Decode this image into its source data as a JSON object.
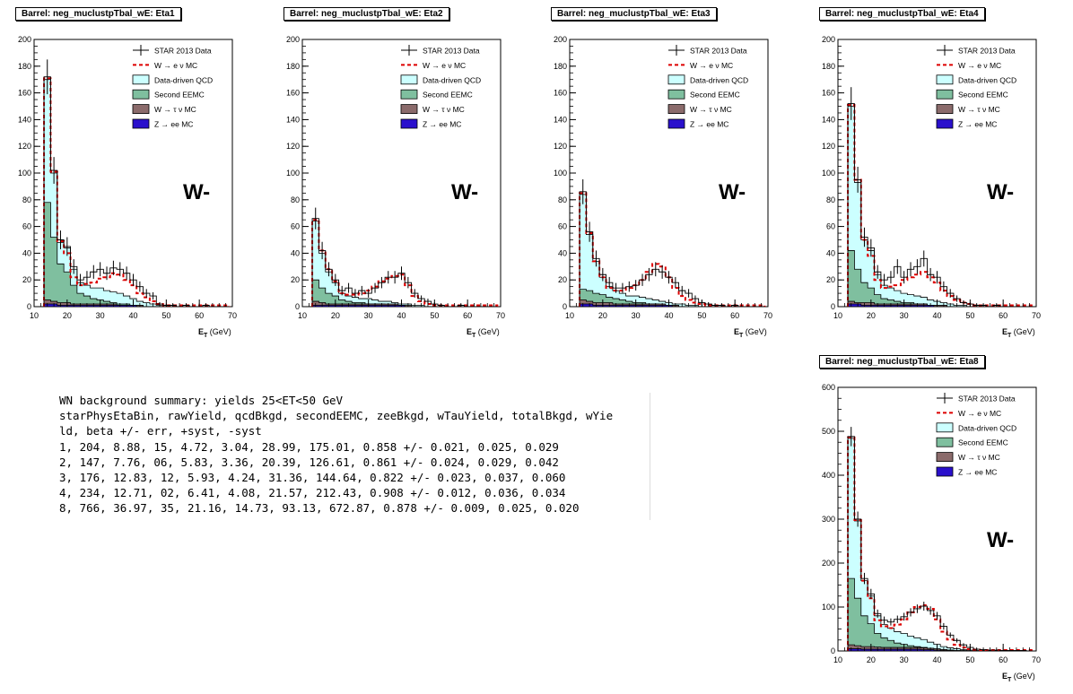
{
  "summary": {
    "lines": [
      "WN background summary: yields 25<ET<50 GeV",
      "starPhysEtaBin, rawYield, qcdBkgd, secondEEMC, zeeBkgd, wTauYield, totalBkgd, wYie",
      "ld, beta +/- err, +syst, -syst",
      "1, 204, 8.88, 15, 4.72, 3.04, 28.99, 175.01, 0.858 +/- 0.021, 0.025, 0.029",
      "2, 147, 7.76, 06, 5.83, 3.36, 20.39, 126.61, 0.861 +/- 0.024, 0.029, 0.042",
      "3, 176, 12.83, 12, 5.93, 4.24, 31.36, 144.64, 0.822 +/- 0.023, 0.037, 0.060",
      "4, 234, 12.71, 02, 6.41, 4.08, 21.57, 212.43, 0.908 +/- 0.012, 0.036, 0.034",
      "8, 766, 36.97, 35, 21.16, 14.73, 93.13, 672.87, 0.878 +/- 0.009, 0.025, 0.020"
    ]
  },
  "legend": [
    {
      "label": "STAR 2013 Data",
      "kind": "data",
      "color": "#000000"
    },
    {
      "label": "W  → e  ν MC",
      "kind": "dash",
      "color": "#dd0000"
    },
    {
      "label": "Data-driven QCD",
      "kind": "box",
      "color": "#ccffff"
    },
    {
      "label": "Second EEMC",
      "kind": "box",
      "color": "#7fbf9f"
    },
    {
      "label": "W  → τ  ν MC",
      "kind": "box",
      "color": "#8b6b6b"
    },
    {
      "label": "Z  → ee MC",
      "kind": "box",
      "color": "#2a10cc"
    }
  ],
  "chart_data": [
    {
      "type": "bar",
      "title": "Barrel: neg_muclustpTbal_wE: Eta1",
      "label": "W-",
      "xlabel": "E",
      "xlabel_sub": "T",
      "xlabel_unit": " (GeV)",
      "xlim": [
        10,
        70
      ],
      "ylim": [
        0,
        200
      ],
      "xticks": [
        10,
        20,
        30,
        40,
        50,
        60,
        70
      ],
      "yticks": [
        0,
        20,
        40,
        60,
        80,
        100,
        120,
        140,
        160,
        180,
        200
      ],
      "bin_width": 2,
      "x": [
        14,
        16,
        18,
        20,
        22,
        24,
        26,
        28,
        30,
        32,
        34,
        36,
        38,
        40,
        42,
        44,
        46,
        48,
        50,
        52,
        54,
        56,
        58,
        60,
        62,
        64,
        66,
        68
      ],
      "data": [
        172,
        102,
        50,
        45,
        30,
        20,
        22,
        26,
        28,
        25,
        29,
        28,
        25,
        20,
        15,
        10,
        8,
        2,
        1,
        1,
        0,
        1,
        0,
        0,
        1,
        0,
        0,
        0
      ],
      "data_err": [
        13,
        10,
        7,
        7,
        5.5,
        4.5,
        4.7,
        5.1,
        5.3,
        5,
        5.4,
        5.3,
        5,
        4.5,
        3.9,
        3.2,
        2.8,
        1.4,
        1,
        1,
        0,
        1,
        0,
        0,
        1,
        0,
        0,
        0
      ],
      "w_mc": [
        171,
        101,
        49,
        40,
        22,
        16,
        17,
        18,
        21,
        22,
        25,
        24,
        20,
        16,
        10,
        7,
        4,
        2,
        1,
        1,
        1,
        1,
        1,
        1,
        1,
        1,
        1,
        1
      ],
      "qcd": [
        170,
        100,
        48,
        44,
        28,
        18,
        16,
        14,
        14,
        12,
        11,
        10,
        8,
        6,
        4,
        3,
        2,
        1,
        1,
        0,
        0,
        0,
        0,
        0,
        0,
        0,
        0,
        0
      ],
      "eemc": [
        78,
        52,
        32,
        26,
        16,
        10,
        8,
        6,
        5,
        4,
        3,
        2,
        2,
        1,
        1,
        0,
        0,
        0,
        0,
        0,
        0,
        0,
        0,
        0,
        0,
        0,
        0,
        0
      ],
      "wtau": [
        5,
        4,
        3,
        3,
        2,
        2,
        2,
        2,
        2,
        2,
        2,
        1,
        1,
        1,
        1,
        0,
        0,
        0,
        0,
        0,
        0,
        0,
        0,
        0,
        0,
        0,
        0,
        0
      ],
      "zee": [
        2,
        2,
        1,
        1,
        1,
        1,
        1,
        1,
        1,
        1,
        1,
        1,
        1,
        1,
        0,
        0,
        0,
        0,
        0,
        0,
        0,
        0,
        0,
        0,
        0,
        0,
        0,
        0
      ]
    },
    {
      "type": "bar",
      "title": "Barrel: neg_muclustpTbal_wE: Eta2",
      "label": "W-",
      "xlabel": "E",
      "xlabel_sub": "T",
      "xlabel_unit": " (GeV)",
      "xlim": [
        10,
        70
      ],
      "ylim": [
        0,
        200
      ],
      "xticks": [
        10,
        20,
        30,
        40,
        50,
        60,
        70
      ],
      "yticks": [
        0,
        20,
        40,
        60,
        80,
        100,
        120,
        140,
        160,
        180,
        200
      ],
      "bin_width": 2,
      "x": [
        14,
        16,
        18,
        20,
        22,
        24,
        26,
        28,
        30,
        32,
        34,
        36,
        38,
        40,
        42,
        44,
        46,
        48,
        50,
        52,
        54,
        56,
        58,
        60,
        62,
        64,
        66,
        68
      ],
      "data": [
        66,
        42,
        28,
        20,
        12,
        14,
        10,
        12,
        10,
        14,
        18,
        22,
        22,
        25,
        18,
        10,
        6,
        4,
        2,
        1,
        0,
        0,
        1,
        0,
        0,
        0,
        0,
        0
      ],
      "data_err": [
        8.1,
        6.5,
        5.3,
        4.5,
        3.5,
        3.7,
        3.2,
        3.5,
        3.2,
        3.7,
        4.2,
        4.7,
        4.7,
        5,
        4.2,
        3.2,
        2.4,
        2,
        1.4,
        1,
        0,
        0,
        1,
        0,
        0,
        0,
        0,
        0
      ],
      "w_mc": [
        65,
        42,
        28,
        19,
        10,
        9,
        9,
        10,
        12,
        15,
        19,
        21,
        23,
        24,
        16,
        8,
        4,
        2,
        1,
        1,
        1,
        1,
        1,
        1,
        1,
        1,
        1,
        1
      ],
      "qcd": [
        64,
        40,
        26,
        18,
        10,
        8,
        7,
        6,
        6,
        5,
        4,
        4,
        3,
        2,
        2,
        1,
        1,
        0,
        0,
        0,
        0,
        0,
        0,
        0,
        0,
        0,
        0,
        0
      ],
      "eemc": [
        20,
        14,
        10,
        8,
        5,
        4,
        3,
        3,
        2,
        2,
        2,
        1,
        1,
        1,
        0,
        0,
        0,
        0,
        0,
        0,
        0,
        0,
        0,
        0,
        0,
        0,
        0,
        0
      ],
      "wtau": [
        4,
        3,
        2,
        2,
        2,
        2,
        2,
        2,
        2,
        2,
        2,
        2,
        2,
        1,
        1,
        0,
        0,
        0,
        0,
        0,
        0,
        0,
        0,
        0,
        0,
        0,
        0,
        0
      ],
      "zee": [
        1,
        1,
        1,
        1,
        1,
        1,
        1,
        1,
        1,
        1,
        1,
        1,
        1,
        1,
        0,
        0,
        0,
        0,
        0,
        0,
        0,
        0,
        0,
        0,
        0,
        0,
        0,
        0
      ]
    },
    {
      "type": "bar",
      "title": "Barrel: neg_muclustpTbal_wE: Eta3",
      "label": "W-",
      "xlabel": "E",
      "xlabel_sub": "T",
      "xlabel_unit": " (GeV)",
      "xlim": [
        10,
        70
      ],
      "ylim": [
        0,
        200
      ],
      "xticks": [
        10,
        20,
        30,
        40,
        50,
        60,
        70
      ],
      "yticks": [
        0,
        20,
        40,
        60,
        80,
        100,
        120,
        140,
        160,
        180,
        200
      ],
      "bin_width": 2,
      "x": [
        14,
        16,
        18,
        20,
        22,
        24,
        26,
        28,
        30,
        32,
        34,
        36,
        38,
        40,
        42,
        44,
        46,
        48,
        50,
        52,
        54,
        56,
        58,
        60,
        62,
        64,
        66,
        68
      ],
      "data": [
        86,
        56,
        36,
        24,
        18,
        14,
        14,
        15,
        16,
        20,
        24,
        28,
        26,
        22,
        18,
        12,
        10,
        6,
        3,
        2,
        1,
        1,
        0,
        1,
        0,
        0,
        0,
        0
      ],
      "data_err": [
        9.3,
        7.5,
        6,
        4.9,
        4.2,
        3.7,
        3.7,
        3.9,
        4,
        4.5,
        4.9,
        5.3,
        5.1,
        4.7,
        4.2,
        3.5,
        3.2,
        2.4,
        1.7,
        1.4,
        1,
        1,
        0,
        1,
        0,
        0,
        0,
        0
      ],
      "w_mc": [
        85,
        55,
        34,
        22,
        14,
        12,
        12,
        14,
        16,
        20,
        26,
        32,
        30,
        22,
        14,
        8,
        5,
        3,
        2,
        1,
        1,
        1,
        1,
        1,
        1,
        1,
        1,
        1
      ],
      "qcd": [
        84,
        54,
        34,
        22,
        15,
        12,
        10,
        8,
        8,
        7,
        6,
        5,
        4,
        3,
        2,
        2,
        1,
        1,
        0,
        0,
        0,
        0,
        0,
        0,
        0,
        0,
        0,
        0
      ],
      "eemc": [
        13,
        12,
        10,
        9,
        7,
        6,
        5,
        4,
        3,
        3,
        2,
        2,
        1,
        1,
        1,
        0,
        0,
        0,
        0,
        0,
        0,
        0,
        0,
        0,
        0,
        0,
        0,
        0
      ],
      "wtau": [
        5,
        4,
        3,
        3,
        3,
        2,
        2,
        2,
        2,
        2,
        2,
        2,
        2,
        1,
        1,
        0,
        0,
        0,
        0,
        0,
        0,
        0,
        0,
        0,
        0,
        0,
        0,
        0
      ],
      "zee": [
        2,
        2,
        1,
        1,
        1,
        1,
        1,
        1,
        1,
        1,
        1,
        1,
        1,
        1,
        0,
        0,
        0,
        0,
        0,
        0,
        0,
        0,
        0,
        0,
        0,
        0,
        0,
        0
      ]
    },
    {
      "type": "bar",
      "title": "Barrel: neg_muclustpTbal_wE: Eta4",
      "label": "W-",
      "xlabel": "E",
      "xlabel_sub": "T",
      "xlabel_unit": " (GeV)",
      "xlim": [
        10,
        70
      ],
      "ylim": [
        0,
        200
      ],
      "xticks": [
        10,
        20,
        30,
        40,
        50,
        60,
        70
      ],
      "yticks": [
        0,
        20,
        40,
        60,
        80,
        100,
        120,
        140,
        160,
        180,
        200
      ],
      "bin_width": 2,
      "x": [
        14,
        16,
        18,
        20,
        22,
        24,
        26,
        28,
        30,
        32,
        34,
        36,
        38,
        40,
        42,
        44,
        46,
        48,
        50,
        52,
        54,
        56,
        58,
        60,
        62,
        64,
        66,
        68
      ],
      "data": [
        152,
        95,
        52,
        44,
        26,
        20,
        22,
        30,
        22,
        28,
        30,
        36,
        24,
        22,
        15,
        10,
        6,
        3,
        2,
        1,
        1,
        0,
        1,
        0,
        0,
        0,
        0,
        0
      ],
      "data_err": [
        12.3,
        9.7,
        7.2,
        6.6,
        5.1,
        4.5,
        4.7,
        5.5,
        4.7,
        5.3,
        5.5,
        6,
        4.9,
        4.7,
        3.9,
        3.2,
        2.4,
        1.7,
        1.4,
        1,
        1,
        0,
        1,
        0,
        0,
        0,
        0,
        0
      ],
      "w_mc": [
        151,
        95,
        50,
        38,
        20,
        14,
        15,
        16,
        20,
        22,
        24,
        26,
        22,
        18,
        12,
        8,
        5,
        3,
        2,
        1,
        1,
        1,
        1,
        1,
        1,
        1,
        1,
        1
      ],
      "qcd": [
        150,
        93,
        50,
        42,
        24,
        16,
        14,
        12,
        10,
        9,
        8,
        7,
        5,
        4,
        3,
        2,
        1,
        1,
        0,
        0,
        0,
        0,
        0,
        0,
        0,
        0,
        0,
        0
      ],
      "eemc": [
        42,
        28,
        18,
        14,
        9,
        6,
        5,
        4,
        3,
        3,
        2,
        2,
        1,
        1,
        1,
        0,
        0,
        0,
        0,
        0,
        0,
        0,
        0,
        0,
        0,
        0,
        0,
        0
      ],
      "wtau": [
        4,
        3,
        3,
        3,
        2,
        2,
        2,
        2,
        2,
        2,
        2,
        2,
        1,
        1,
        1,
        0,
        0,
        0,
        0,
        0,
        0,
        0,
        0,
        0,
        0,
        0,
        0,
        0
      ],
      "zee": [
        2,
        2,
        1,
        1,
        1,
        1,
        1,
        1,
        1,
        1,
        1,
        1,
        1,
        0,
        0,
        0,
        0,
        0,
        0,
        0,
        0,
        0,
        0,
        0,
        0,
        0,
        0,
        0
      ]
    },
    {
      "type": "bar",
      "title": "Barrel: neg_muclustpTbal_wE: Eta8",
      "label": "W-",
      "xlabel": "E",
      "xlabel_sub": "T",
      "xlabel_unit": " (GeV)",
      "xlim": [
        10,
        70
      ],
      "ylim": [
        0,
        600
      ],
      "xticks": [
        10,
        20,
        30,
        40,
        50,
        60,
        70
      ],
      "yticks": [
        0,
        100,
        200,
        300,
        400,
        500,
        600
      ],
      "bin_width": 2,
      "x": [
        14,
        16,
        18,
        20,
        22,
        24,
        26,
        28,
        30,
        32,
        34,
        36,
        38,
        40,
        42,
        44,
        46,
        48,
        50,
        52,
        54,
        56,
        58,
        60,
        62,
        64,
        66,
        68
      ],
      "data": [
        488,
        300,
        165,
        130,
        85,
        70,
        66,
        72,
        78,
        88,
        96,
        102,
        92,
        80,
        56,
        36,
        24,
        14,
        8,
        4,
        3,
        2,
        2,
        1,
        1,
        1,
        1,
        0
      ],
      "data_err": [
        22,
        17.3,
        12.8,
        11.4,
        9.2,
        8.4,
        8.1,
        8.5,
        8.8,
        9.4,
        9.8,
        10.1,
        9.6,
        8.9,
        7.5,
        6,
        4.9,
        3.7,
        2.8,
        2,
        1.7,
        1.4,
        1.4,
        1,
        1,
        1,
        1,
        0
      ],
      "w_mc": [
        486,
        298,
        160,
        120,
        70,
        56,
        52,
        60,
        72,
        88,
        100,
        104,
        96,
        72,
        44,
        26,
        14,
        8,
        4,
        3,
        2,
        2,
        2,
        2,
        2,
        2,
        2,
        2
      ],
      "qcd": [
        484,
        296,
        160,
        125,
        80,
        60,
        52,
        44,
        40,
        34,
        30,
        26,
        20,
        15,
        10,
        7,
        5,
        3,
        2,
        1,
        1,
        0,
        0,
        0,
        0,
        0,
        0,
        0
      ],
      "eemc": [
        165,
        120,
        80,
        62,
        40,
        30,
        24,
        18,
        15,
        12,
        10,
        8,
        6,
        4,
        3,
        2,
        1,
        1,
        0,
        0,
        0,
        0,
        0,
        0,
        0,
        0,
        0,
        0
      ],
      "wtau": [
        14,
        12,
        10,
        10,
        9,
        8,
        8,
        8,
        8,
        8,
        8,
        7,
        6,
        5,
        3,
        2,
        1,
        0,
        0,
        0,
        0,
        0,
        0,
        0,
        0,
        0,
        0,
        0
      ],
      "zee": [
        5,
        5,
        4,
        4,
        4,
        4,
        4,
        4,
        4,
        4,
        4,
        3,
        3,
        2,
        1,
        1,
        0,
        0,
        0,
        0,
        0,
        0,
        0,
        0,
        0,
        0,
        0,
        0
      ]
    }
  ]
}
